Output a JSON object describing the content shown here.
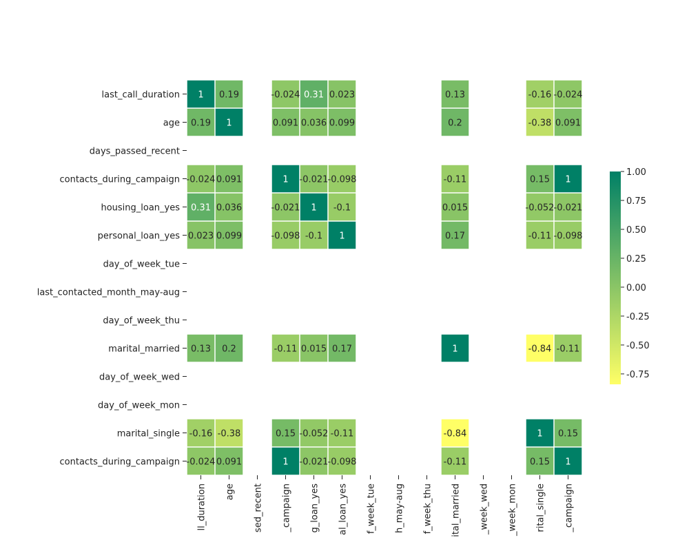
{
  "chart_data": {
    "type": "heatmap",
    "title": "",
    "xlabel": "",
    "ylabel": "",
    "rows": [
      "last_call_duration",
      "age",
      "days_passed_recent",
      "contacts_during_campaign",
      "housing_loan_yes",
      "personal_loan_yes",
      "day_of_week_tue",
      "last_contacted_month_may-aug",
      "day_of_week_thu",
      "marital_married",
      "day_of_week_wed",
      "day_of_week_mon",
      "marital_single",
      "contacts_during_campaign"
    ],
    "columns": [
      "last_call_duration",
      "age",
      "days_passed_recent",
      "contacts_during_campaign",
      "housing_loan_yes",
      "personal_loan_yes",
      "day_of_week_tue",
      "last_contacted_month_may-aug",
      "day_of_week_thu",
      "marital_married",
      "day_of_week_wed",
      "day_of_week_mon",
      "marital_single",
      "contacts_during_campaign"
    ],
    "visible_column_labels": [
      "ll_duration",
      "age",
      "sed_recent",
      "_campaign",
      "g_loan_yes",
      "al_loan_yes",
      "f_week_tue",
      "h_may-aug",
      "f_week_thu",
      "ital_married",
      "_week_wed",
      "_week_mon",
      "rital_single",
      "_campaign"
    ],
    "values": [
      [
        1,
        0.19,
        null,
        -0.024,
        0.31,
        0.023,
        null,
        null,
        null,
        0.13,
        null,
        null,
        -0.16,
        -0.024
      ],
      [
        0.19,
        1,
        null,
        0.091,
        0.036,
        0.099,
        null,
        null,
        null,
        0.2,
        null,
        null,
        -0.38,
        0.091
      ],
      [
        null,
        null,
        null,
        null,
        null,
        null,
        null,
        null,
        null,
        null,
        null,
        null,
        null,
        null
      ],
      [
        -0.024,
        0.091,
        null,
        1,
        -0.021,
        -0.098,
        null,
        null,
        null,
        -0.11,
        null,
        null,
        0.15,
        1
      ],
      [
        0.31,
        0.036,
        null,
        -0.021,
        1,
        -0.1,
        null,
        null,
        null,
        0.015,
        null,
        null,
        -0.052,
        -0.021
      ],
      [
        0.023,
        0.099,
        null,
        -0.098,
        -0.1,
        1,
        null,
        null,
        null,
        0.17,
        null,
        null,
        -0.11,
        -0.098
      ],
      [
        null,
        null,
        null,
        null,
        null,
        null,
        null,
        null,
        null,
        null,
        null,
        null,
        null,
        null
      ],
      [
        null,
        null,
        null,
        null,
        null,
        null,
        null,
        null,
        null,
        null,
        null,
        null,
        null,
        null
      ],
      [
        null,
        null,
        null,
        null,
        null,
        null,
        null,
        null,
        null,
        null,
        null,
        null,
        null,
        null
      ],
      [
        0.13,
        0.2,
        null,
        -0.11,
        0.015,
        0.17,
        null,
        null,
        null,
        1,
        null,
        null,
        -0.84,
        -0.11
      ],
      [
        null,
        null,
        null,
        null,
        null,
        null,
        null,
        null,
        null,
        null,
        null,
        null,
        null,
        null
      ],
      [
        null,
        null,
        null,
        null,
        null,
        null,
        null,
        null,
        null,
        null,
        null,
        null,
        null,
        null
      ],
      [
        -0.16,
        -0.38,
        null,
        0.15,
        -0.052,
        -0.11,
        null,
        null,
        null,
        -0.84,
        null,
        null,
        1,
        0.15
      ],
      [
        -0.024,
        0.091,
        null,
        1,
        -0.021,
        -0.098,
        null,
        null,
        null,
        -0.11,
        null,
        null,
        0.15,
        1
      ]
    ],
    "annotations": true,
    "colormap": "summer_r",
    "color_min": "#ffff66",
    "color_max": "#008066",
    "cell_border_color": "#ffffff",
    "vmin": -0.84,
    "vmax": 1,
    "colorbar": {
      "position": "right",
      "ticks": [
        "1.00",
        "0.75",
        "0.50",
        "0.25",
        "0.00",
        "-0.25",
        "-0.50",
        "-0.75"
      ]
    },
    "grid": false
  }
}
